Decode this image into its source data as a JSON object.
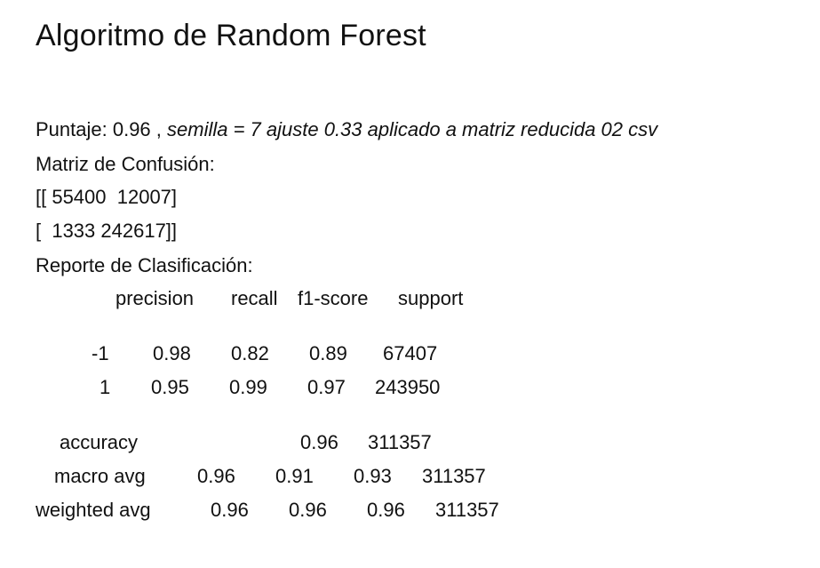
{
  "title": "Algoritmo de Random Forest",
  "score": {
    "label": "Puntaje: 0.96 ,",
    "detail": "semilla = 7 ajuste 0.33 aplicado a matriz reducida 02 csv"
  },
  "confusion": {
    "title": "Matriz de Confusión:",
    "row1": "[[ 55400  12007]",
    "row2": "[  1333 242617]]"
  },
  "report": {
    "title": "Reporte de Clasificación:",
    "headers": [
      "precision",
      "recall",
      "f1-score",
      "support"
    ],
    "rows": [
      [
        "-1",
        "0.98",
        "0.82",
        "0.89",
        "67407"
      ],
      [
        "1",
        "0.95",
        "0.99",
        "0.97",
        "243950"
      ]
    ],
    "accuracy": [
      "accuracy",
      "0.96",
      "311357"
    ],
    "macro": [
      "macro avg",
      "0.96",
      "0.91",
      "0.93",
      "311357"
    ],
    "weighted": [
      "weighted avg",
      "0.96",
      "0.96",
      "0.96",
      "311357"
    ]
  }
}
